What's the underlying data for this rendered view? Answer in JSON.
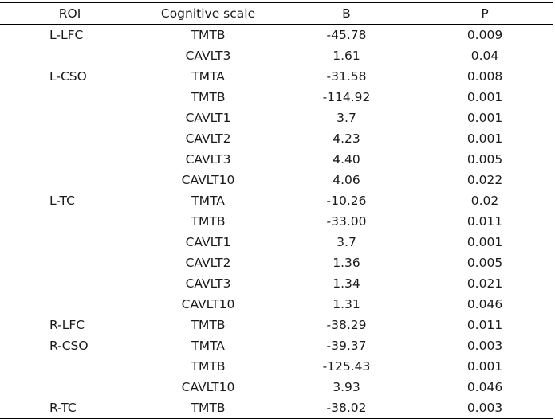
{
  "table": {
    "headers": [
      "ROI",
      "Cognitive scale",
      "B",
      "P"
    ],
    "rows": [
      {
        "roi": "L-LFC",
        "scale": "TMTB",
        "b": "-45.78",
        "p": "0.009"
      },
      {
        "roi": "",
        "scale": "CAVLT3",
        "b": "1.61",
        "p": "0.04"
      },
      {
        "roi": "L-CSO",
        "scale": "TMTA",
        "b": "-31.58",
        "p": "0.008"
      },
      {
        "roi": "",
        "scale": "TMTB",
        "b": "-114.92",
        "p": "0.001"
      },
      {
        "roi": "",
        "scale": "CAVLT1",
        "b": "3.7",
        "p": "0.001"
      },
      {
        "roi": "",
        "scale": "CAVLT2",
        "b": "4.23",
        "p": "0.001"
      },
      {
        "roi": "",
        "scale": "CAVLT3",
        "b": "4.40",
        "p": "0.005"
      },
      {
        "roi": "",
        "scale": "CAVLT10",
        "b": "4.06",
        "p": "0.022"
      },
      {
        "roi": "L-TC",
        "scale": "TMTA",
        "b": "-10.26",
        "p": "0.02"
      },
      {
        "roi": "",
        "scale": "TMTB",
        "b": "-33.00",
        "p": "0.011"
      },
      {
        "roi": "",
        "scale": "CAVLT1",
        "b": "3.7",
        "p": "0.001"
      },
      {
        "roi": "",
        "scale": "CAVLT2",
        "b": "1.36",
        "p": "0.005"
      },
      {
        "roi": "",
        "scale": "CAVLT3",
        "b": "1.34",
        "p": "0.021"
      },
      {
        "roi": "",
        "scale": "CAVLT10",
        "b": "1.31",
        "p": "0.046"
      },
      {
        "roi": "R-LFC",
        "scale": "TMTB",
        "b": "-38.29",
        "p": "0.011"
      },
      {
        "roi": "R-CSO",
        "scale": "TMTA",
        "b": "-39.37",
        "p": "0.003"
      },
      {
        "roi": "",
        "scale": "TMTB",
        "b": "-125.43",
        "p": "0.001"
      },
      {
        "roi": "",
        "scale": "CAVLT10",
        "b": "3.93",
        "p": "0.046"
      },
      {
        "roi": "R-TC",
        "scale": "TMTB",
        "b": "-38.02",
        "p": "0.003"
      }
    ]
  }
}
